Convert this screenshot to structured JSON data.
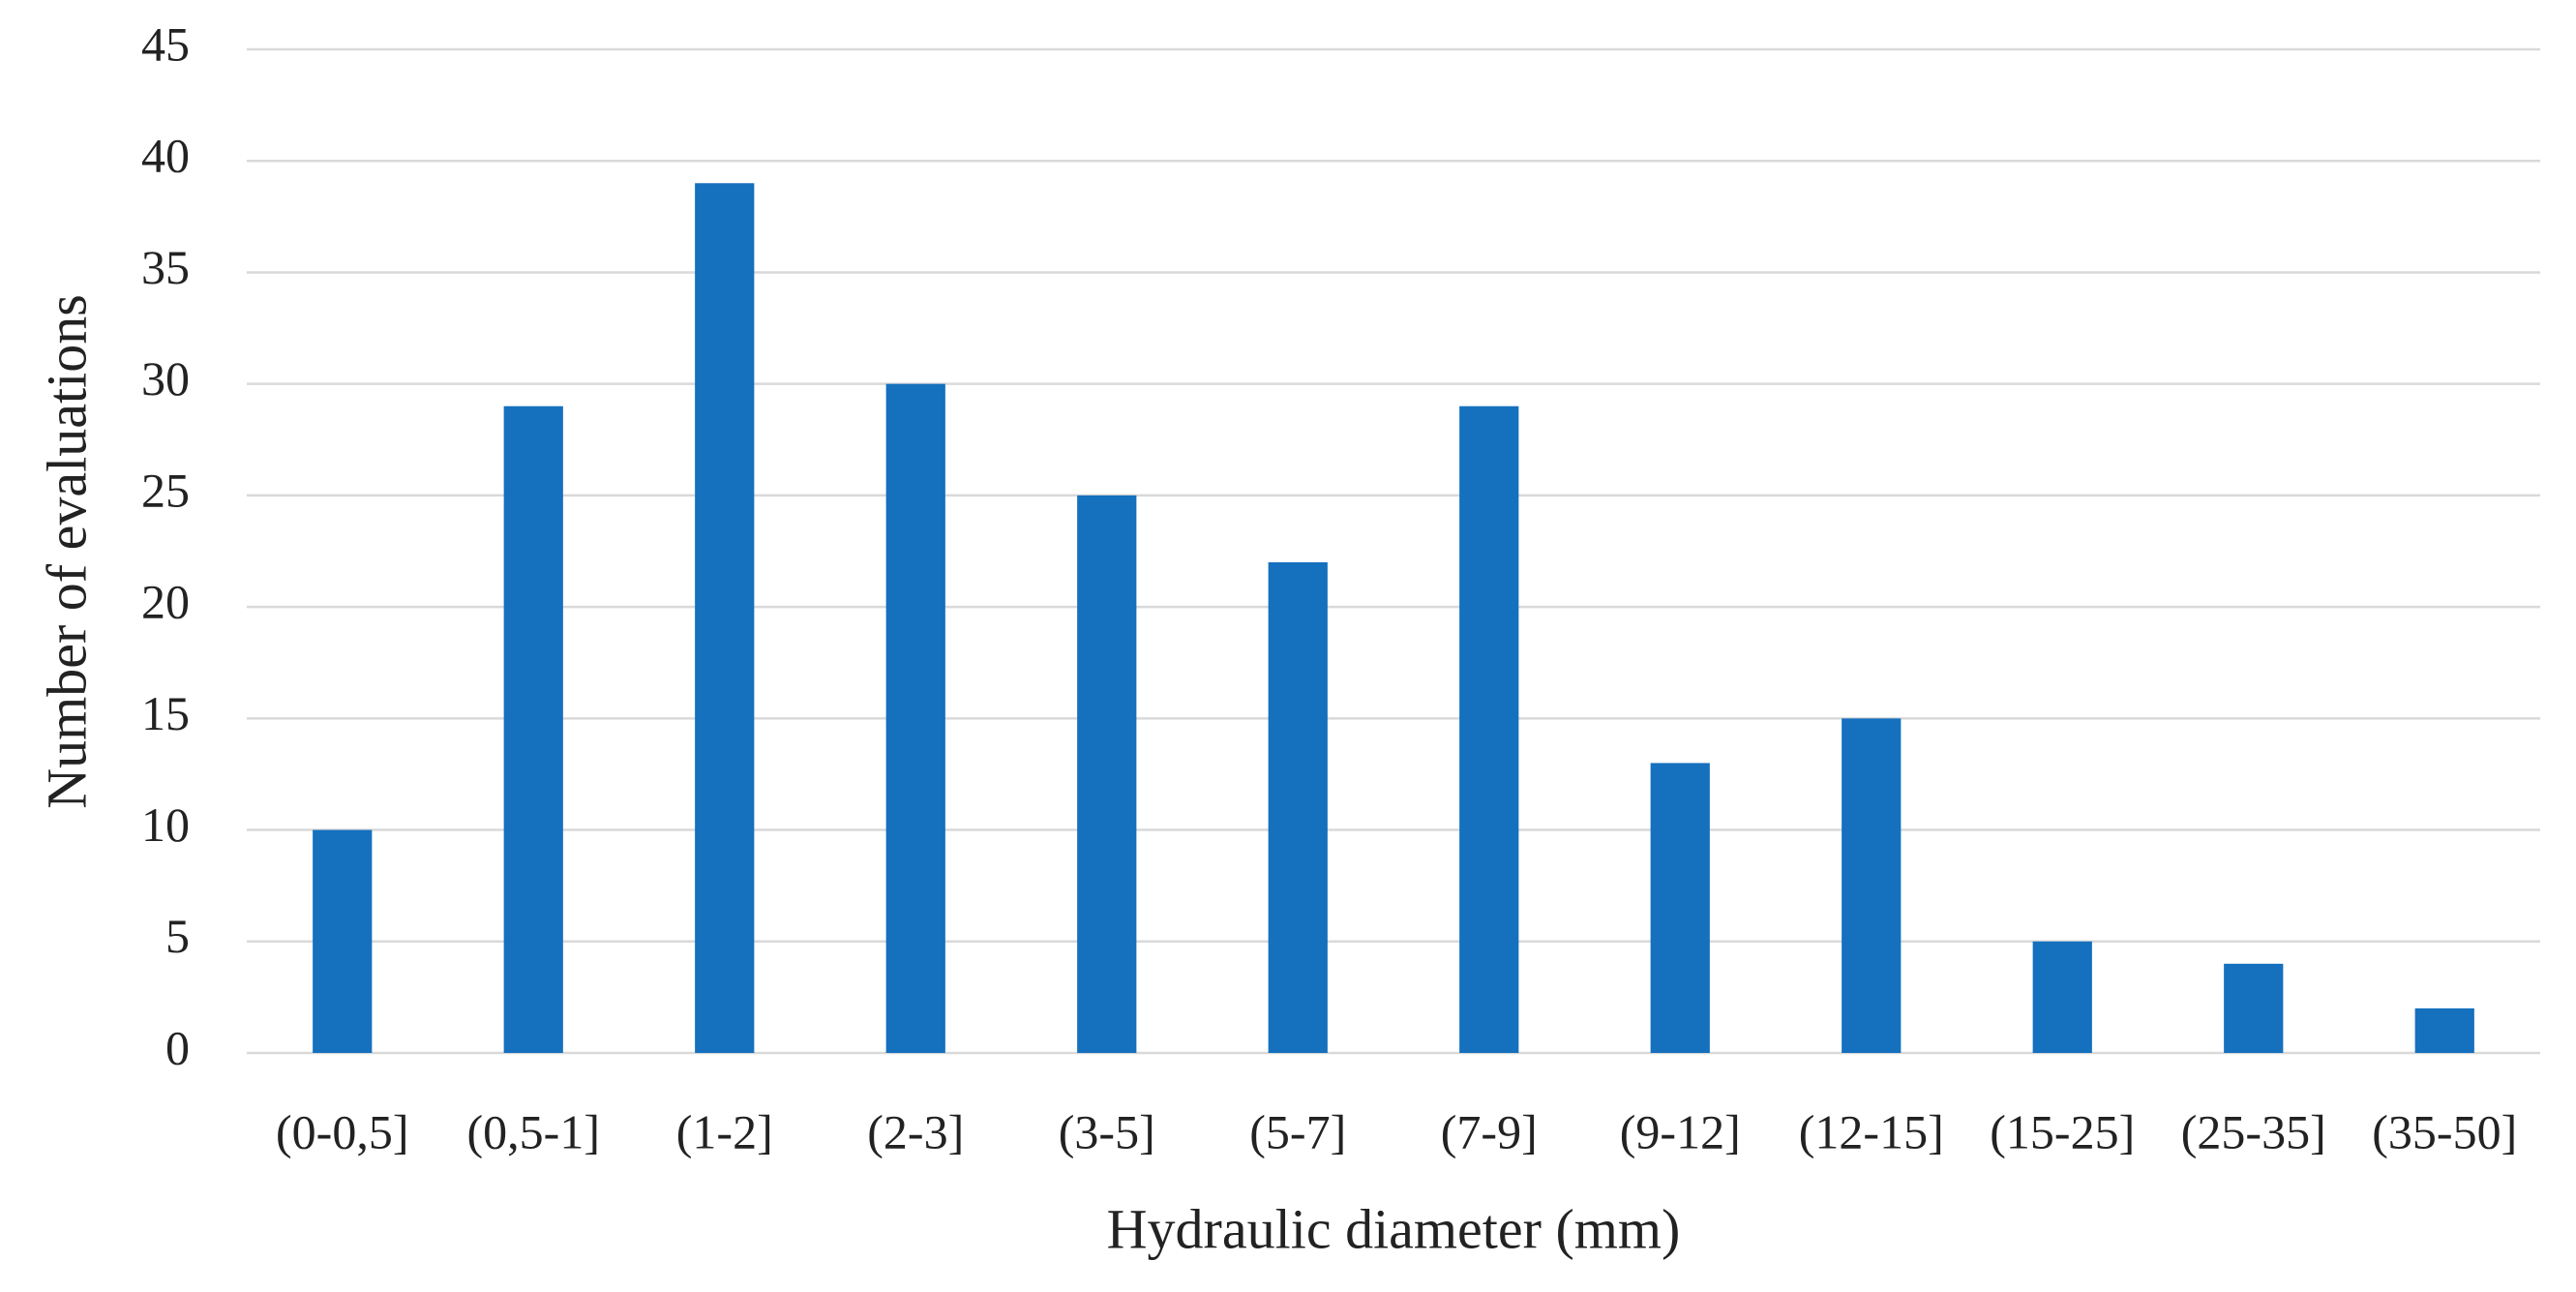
{
  "chart_data": {
    "type": "bar",
    "xlabel": "Hydraulic diameter (mm)",
    "ylabel": "Number of evaluations",
    "categories": [
      "(0-0,5]",
      "(0,5-1]",
      "(1-2]",
      "(2-3]",
      "(3-5]",
      "(5-7]",
      "(7-9]",
      "(9-12]",
      "(12-15]",
      "(15-25]",
      "(25-35]",
      "(35-50]"
    ],
    "values": [
      10,
      29,
      39,
      30,
      25,
      22,
      29,
      13,
      15,
      5,
      4,
      2
    ],
    "color": "#1570be",
    "ylim": [
      0,
      45
    ],
    "yticks": [
      0,
      5,
      10,
      15,
      20,
      25,
      30,
      35,
      40,
      45
    ],
    "grid": true
  }
}
